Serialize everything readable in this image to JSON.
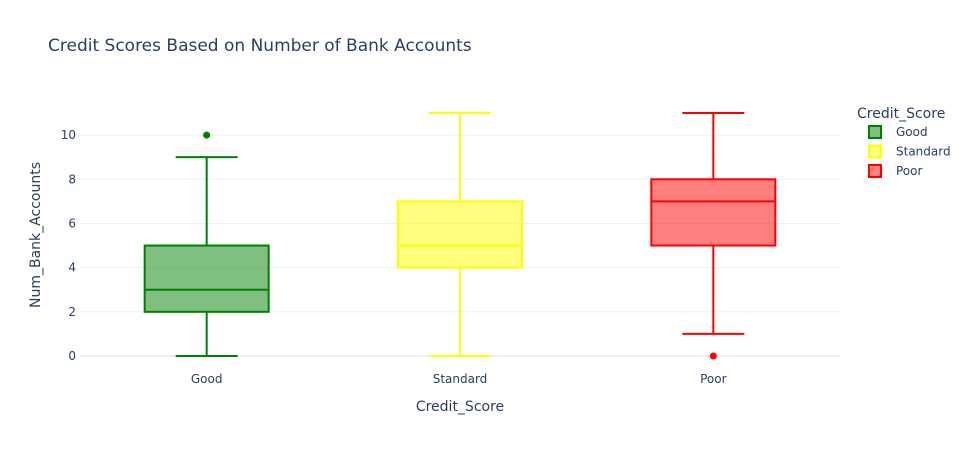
{
  "chart_data": {
    "type": "box",
    "title": "Credit Scores Based on Number of Bank Accounts",
    "xlabel": "Credit_Score",
    "ylabel": "Num_Bank_Accounts",
    "categories": [
      "Good",
      "Standard",
      "Poor"
    ],
    "ylim": [
      -0.5,
      11.5
    ],
    "yticks": [
      0,
      2,
      4,
      6,
      8,
      10
    ],
    "grid": true,
    "legend": {
      "title": "Credit_Score",
      "placement": "right"
    },
    "series": [
      {
        "name": "Good",
        "color": "#008000",
        "min": 0,
        "q1": 2,
        "median": 3,
        "q3": 5,
        "max": 9,
        "outliers": [
          10
        ]
      },
      {
        "name": "Standard",
        "color": "#ffff00",
        "min": 0,
        "q1": 4,
        "median": 5,
        "q3": 7,
        "max": 11,
        "outliers": []
      },
      {
        "name": "Poor",
        "color": "#ff0000",
        "min": 1,
        "q1": 5,
        "median": 7,
        "q3": 8,
        "max": 11,
        "outliers": [
          0
        ]
      }
    ]
  }
}
